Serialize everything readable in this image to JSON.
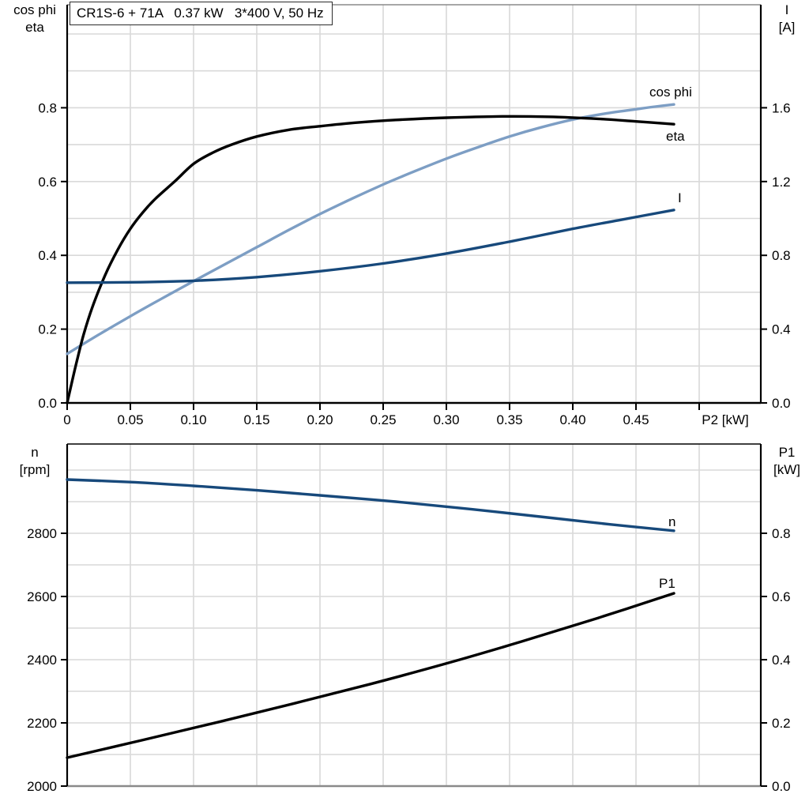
{
  "title_box": {
    "text": "CR1S-6 + 71A   0.37 kW   3*400 V, 50 Hz"
  },
  "colors": {
    "grid": "#d9d9d9",
    "axis": "#000000",
    "frame_gray": "#8a8a8a",
    "light_blue": "#7d9ec4",
    "dark_blue": "#17497b",
    "black": "#000000"
  },
  "chart_data": {
    "type": "line",
    "charts": [
      {
        "name": "motor-electrical",
        "x_axis": {
          "label": "P2 [kW]",
          "min": 0,
          "max": 0.549,
          "ticks": [
            0,
            0.05,
            0.1,
            0.15,
            0.2,
            0.25,
            0.3,
            0.35,
            0.4,
            0.45,
            0.5
          ],
          "tick_labels": [
            "0",
            "0.05",
            "0.10",
            "0.15",
            "0.20",
            "0.25",
            "0.30",
            "0.35",
            "0.40",
            "0.45",
            ""
          ],
          "grid_step": 0.05
        },
        "left_axis": {
          "title_lines": [
            "cos phi",
            "eta"
          ],
          "min": 0,
          "max": 1.08,
          "ticks": [
            0.0,
            0.2,
            0.4,
            0.6,
            0.8
          ],
          "tick_labels": [
            "0.0",
            "0.2",
            "0.4",
            "0.6",
            "0.8"
          ],
          "minor_step": 0.1,
          "minor_max": 1.0
        },
        "right_axis": {
          "title_lines": [
            "I",
            "[A]"
          ],
          "min": 0,
          "max": 2.16,
          "ticks": [
            0.0,
            0.4,
            0.8,
            1.2,
            1.6
          ],
          "tick_labels": [
            "0.0",
            "0.4",
            "0.8",
            "1.2",
            "1.6"
          ]
        },
        "series": [
          {
            "name": "cos phi",
            "axis": "left",
            "color_key": "light_blue",
            "points": [
              [
                0,
                0.133
              ],
              [
                0.025,
                0.185
              ],
              [
                0.05,
                0.235
              ],
              [
                0.075,
                0.283
              ],
              [
                0.1,
                0.33
              ],
              [
                0.125,
                0.376
              ],
              [
                0.15,
                0.422
              ],
              [
                0.175,
                0.468
              ],
              [
                0.2,
                0.512
              ],
              [
                0.225,
                0.553
              ],
              [
                0.25,
                0.592
              ],
              [
                0.275,
                0.628
              ],
              [
                0.3,
                0.662
              ],
              [
                0.325,
                0.693
              ],
              [
                0.35,
                0.722
              ],
              [
                0.375,
                0.747
              ],
              [
                0.4,
                0.768
              ],
              [
                0.425,
                0.784
              ],
              [
                0.45,
                0.796
              ],
              [
                0.465,
                0.803
              ],
              [
                0.48,
                0.809
              ]
            ]
          },
          {
            "name": "eta",
            "axis": "left",
            "color_key": "black",
            "points": [
              [
                0,
                0
              ],
              [
                0.004,
                0.06
              ],
              [
                0.008,
                0.118
              ],
              [
                0.013,
                0.185
              ],
              [
                0.02,
                0.26
              ],
              [
                0.03,
                0.346
              ],
              [
                0.04,
                0.415
              ],
              [
                0.05,
                0.472
              ],
              [
                0.06,
                0.517
              ],
              [
                0.07,
                0.554
              ],
              [
                0.085,
                0.6
              ],
              [
                0.1,
                0.648
              ],
              [
                0.115,
                0.678
              ],
              [
                0.13,
                0.7
              ],
              [
                0.15,
                0.722
              ],
              [
                0.175,
                0.74
              ],
              [
                0.2,
                0.75
              ],
              [
                0.23,
                0.76
              ],
              [
                0.26,
                0.767
              ],
              [
                0.3,
                0.773
              ],
              [
                0.34,
                0.7765
              ],
              [
                0.38,
                0.7755
              ],
              [
                0.42,
                0.77
              ],
              [
                0.45,
                0.763
              ],
              [
                0.48,
                0.7555
              ]
            ]
          },
          {
            "name": "I",
            "axis": "right",
            "color_key": "dark_blue",
            "points": [
              [
                0,
                0.652
              ],
              [
                0.05,
                0.654
              ],
              [
                0.1,
                0.662
              ],
              [
                0.15,
                0.682
              ],
              [
                0.2,
                0.714
              ],
              [
                0.25,
                0.756
              ],
              [
                0.3,
                0.81
              ],
              [
                0.35,
                0.874
              ],
              [
                0.4,
                0.944
              ],
              [
                0.44,
                0.995
              ],
              [
                0.48,
                1.046
              ]
            ]
          }
        ]
      },
      {
        "name": "speed-power",
        "x_axis": {
          "label": "",
          "min": 0,
          "max": 0.549,
          "ticks": [],
          "tick_labels": [],
          "grid_step": 0.05
        },
        "left_axis": {
          "title_lines": [
            "n",
            "[rpm]"
          ],
          "min": 2000,
          "max": 3080,
          "ticks": [
            2000,
            2200,
            2400,
            2600,
            2800
          ],
          "tick_labels": [
            "2000",
            "2200",
            "2400",
            "2600",
            "2800"
          ],
          "minor_step": 100,
          "minor_max": 3000
        },
        "right_axis": {
          "title_lines": [
            "P1",
            "[kW]"
          ],
          "min": 0,
          "max": 1.08,
          "ticks": [
            0.0,
            0.2,
            0.4,
            0.6,
            0.8
          ],
          "tick_labels": [
            "0.0",
            "0.2",
            "0.4",
            "0.6",
            "0.8"
          ]
        },
        "series": [
          {
            "name": "n",
            "axis": "left",
            "color_key": "dark_blue",
            "points": [
              [
                0,
                2970
              ],
              [
                0.05,
                2962
              ],
              [
                0.1,
                2950
              ],
              [
                0.15,
                2936
              ],
              [
                0.2,
                2920
              ],
              [
                0.26,
                2900
              ],
              [
                0.32,
                2876
              ],
              [
                0.38,
                2850
              ],
              [
                0.43,
                2828
              ],
              [
                0.48,
                2808
              ]
            ]
          },
          {
            "name": "P1",
            "axis": "right",
            "color_key": "black",
            "points": [
              [
                0,
                0.09
              ],
              [
                0.06,
                0.146
              ],
              [
                0.12,
                0.203
              ],
              [
                0.18,
                0.262
              ],
              [
                0.24,
                0.323
              ],
              [
                0.3,
                0.388
              ],
              [
                0.36,
                0.458
              ],
              [
                0.42,
                0.532
              ],
              [
                0.48,
                0.61
              ]
            ]
          }
        ]
      }
    ]
  }
}
